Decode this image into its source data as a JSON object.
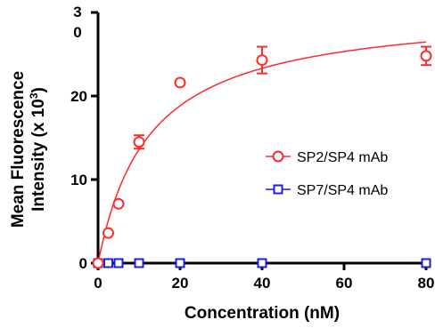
{
  "chart_data": {
    "type": "scatter",
    "xlabel": "Concentration (nM)",
    "ylabel_line1": "Mean Fluorescence",
    "ylabel_line2": "Intensity (x 10",
    "ylabel_sup": "3",
    "ylabel_close": ")",
    "xlim": [
      0,
      80
    ],
    "ylim": [
      0,
      30
    ],
    "x_ticks": [
      0,
      20,
      40,
      60,
      80
    ],
    "x_tick_labels": [
      "0",
      "20",
      "40",
      "60",
      "80"
    ],
    "y_ticks": [
      0,
      10,
      20
    ],
    "y_tick_labels": [
      "0",
      "10",
      "20"
    ],
    "y_top_label_line1": "3",
    "y_top_label_line2": "0",
    "grid": false,
    "legend_position": "right",
    "series": [
      {
        "name": "SP2/SP4 mAb",
        "color": "#ff2a2a",
        "marker": "circle",
        "points": [
          {
            "x": 0,
            "y": 0,
            "err": 0
          },
          {
            "x": 2.5,
            "y": 3.6,
            "err": 0
          },
          {
            "x": 5,
            "y": 7.1,
            "err": 0
          },
          {
            "x": 10,
            "y": 14.5,
            "err": 0.8
          },
          {
            "x": 20,
            "y": 21.6,
            "err": 0
          },
          {
            "x": 40,
            "y": 24.3,
            "err": 1.6
          },
          {
            "x": 80,
            "y": 24.8,
            "err": 1.1
          }
        ],
        "fit": {
          "model": "one-site saturation",
          "bmax": 30.6,
          "kd": 12.5
        }
      },
      {
        "name": "SP7/SP4 mAb",
        "color": "#1f1fd6",
        "marker": "square",
        "points": [
          {
            "x": 0,
            "y": 0
          },
          {
            "x": 2.5,
            "y": 0
          },
          {
            "x": 5,
            "y": 0
          },
          {
            "x": 10,
            "y": 0
          },
          {
            "x": 20,
            "y": 0
          },
          {
            "x": 40,
            "y": 0
          },
          {
            "x": 80,
            "y": 0
          }
        ]
      }
    ]
  }
}
